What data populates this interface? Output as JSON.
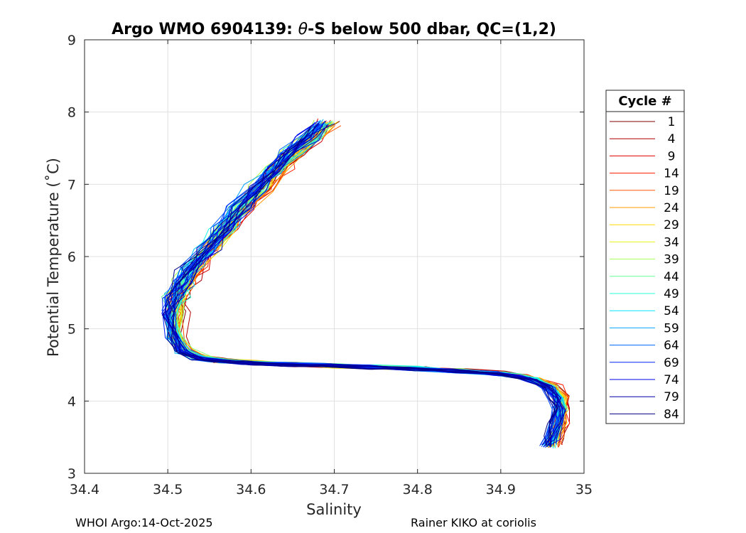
{
  "chart_data": {
    "type": "line",
    "title_prefix": "Argo WMO 6904139: ",
    "title_symbol": "θ",
    "title_suffix": "-S below 500 dbar,  QC=(1,2)",
    "xlabel": "Salinity",
    "ylabel": "Potential Temperature (˚C)",
    "xlim": [
      34.4,
      35.0
    ],
    "ylim": [
      3,
      9
    ],
    "xticks": [
      "34.4",
      "34.5",
      "34.6",
      "34.7",
      "34.8",
      "34.9",
      "35"
    ],
    "yticks": [
      "3",
      "4",
      "5",
      "6",
      "7",
      "8",
      "9"
    ],
    "grid": true,
    "legend_placement": "right",
    "legend_title": "Cycle #",
    "legend_entries": [
      {
        "label": "1",
        "color": "#800000"
      },
      {
        "label": "4",
        "color": "#b00000"
      },
      {
        "label": "9",
        "color": "#e00000"
      },
      {
        "label": "14",
        "color": "#ff1a00"
      },
      {
        "label": "19",
        "color": "#ff5a00"
      },
      {
        "label": "24",
        "color": "#ff9a00"
      },
      {
        "label": "29",
        "color": "#ffd800"
      },
      {
        "label": "34",
        "color": "#e6f21a"
      },
      {
        "label": "39",
        "color": "#a6ff59"
      },
      {
        "label": "44",
        "color": "#66ff99"
      },
      {
        "label": "49",
        "color": "#26ffd9"
      },
      {
        "label": "54",
        "color": "#00e6ff"
      },
      {
        "label": "59",
        "color": "#00a6ff"
      },
      {
        "label": "64",
        "color": "#0066ff"
      },
      {
        "label": "69",
        "color": "#0026ff"
      },
      {
        "label": "74",
        "color": "#0000e6"
      },
      {
        "label": "79",
        "color": "#0000a6"
      },
      {
        "label": "84",
        "color": "#000080"
      }
    ],
    "representative_profile": {
      "salinity": [
        34.96,
        34.965,
        34.97,
        34.972,
        34.97,
        34.96,
        34.94,
        34.92,
        34.9,
        34.85,
        34.8,
        34.75,
        34.7,
        34.65,
        34.6,
        34.56,
        34.54,
        34.52,
        34.51,
        34.505,
        34.51,
        34.52,
        34.53,
        34.55,
        34.57,
        34.59,
        34.61,
        34.63,
        34.65,
        34.67,
        34.69
      ],
      "theta": [
        3.38,
        3.5,
        3.7,
        3.9,
        4.05,
        4.2,
        4.3,
        4.35,
        4.38,
        4.42,
        4.45,
        4.47,
        4.49,
        4.51,
        4.53,
        4.56,
        4.6,
        4.7,
        4.9,
        5.2,
        5.45,
        5.65,
        5.85,
        6.1,
        6.4,
        6.7,
        6.95,
        7.2,
        7.45,
        7.65,
        7.85
      ]
    },
    "profile_count": 84
  },
  "footer": {
    "left": "WHOI Argo:14-Oct-2025",
    "right": "Rainer KIKO at coriolis"
  }
}
